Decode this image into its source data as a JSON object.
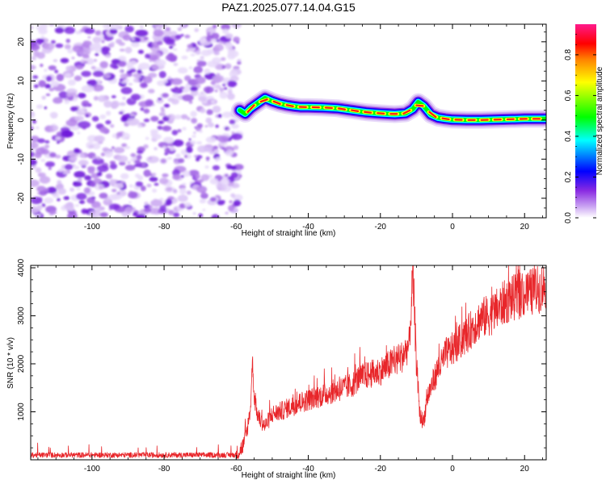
{
  "title": "PAZ1.2025.077.14.04.G15",
  "chart_data": [
    {
      "type": "heatmap",
      "xlabel": "Height of straight line (km)",
      "ylabel": "Frequency (Hz)",
      "xlim": [
        -117,
        26
      ],
      "ylim": [
        -25,
        24.5
      ],
      "xticks": [
        -100,
        -80,
        -60,
        -40,
        -20,
        0,
        20
      ],
      "yticks": [
        -20,
        -10,
        0,
        10,
        20
      ],
      "noise_region_x": [
        -117,
        -59
      ],
      "signal_trace": {
        "x": [
          -59,
          -57.5,
          -56,
          -54,
          -52,
          -50,
          -48,
          -46,
          -44,
          -42,
          -40,
          -36,
          -32,
          -28,
          -24,
          -20,
          -16,
          -13,
          -11,
          -9.5,
          -8,
          -6,
          -4,
          -2,
          0,
          4,
          8,
          12,
          16,
          20,
          24,
          26
        ],
        "y": [
          2.5,
          1.6,
          3.0,
          4.3,
          5.6,
          4.8,
          4.2,
          3.8,
          3.5,
          3.3,
          3.3,
          3.2,
          3.0,
          2.5,
          2.0,
          1.7,
          1.5,
          1.7,
          2.8,
          4.6,
          3.6,
          1.4,
          0.6,
          0.3,
          0.1,
          0.0,
          0.0,
          0.1,
          0.2,
          0.3,
          0.3,
          0.3
        ]
      },
      "colorbar": {
        "label": "Normalized spectral amplitude",
        "ticks": [
          "0.0",
          "0.2",
          "0.4",
          "0.6",
          "0.8"
        ],
        "tick_values": [
          0.0,
          0.2,
          0.4,
          0.6,
          0.8
        ],
        "range": [
          0,
          0.95
        ],
        "colormap": [
          "#ffffff",
          "#8a2be2",
          "#0000ff",
          "#00ffff",
          "#00ff00",
          "#ffff00",
          "#ff0000",
          "#ff1493"
        ]
      }
    },
    {
      "type": "line",
      "xlabel": "Height of straight line (km)",
      "ylabel": "SNR (10 * v/v)",
      "xlim": [
        -117,
        26
      ],
      "ylim": [
        0,
        4050
      ],
      "xticks": [
        -100,
        -80,
        -60,
        -40,
        -20,
        0,
        20
      ],
      "yticks": [
        1000,
        2000,
        3000,
        4000
      ],
      "color": "#e8262a",
      "series": [
        {
          "x": [
            -117,
            -60,
            -58,
            -57,
            -56,
            -55.5,
            -55,
            -54,
            -52,
            -50,
            -48,
            -45,
            -42,
            -40,
            -38,
            -36,
            -34,
            -30,
            -28,
            -26,
            -24,
            -22,
            -20,
            -18,
            -16,
            -14,
            -12,
            -11,
            -10.5,
            -10,
            -9,
            -8,
            -7,
            -6,
            -5,
            -4,
            -3,
            -2,
            0,
            2,
            4,
            6,
            8,
            10,
            12,
            14,
            16,
            18,
            20,
            22,
            24,
            26
          ],
          "y": [
            100,
            100,
            300,
            600,
            1100,
            2100,
            1300,
            900,
            700,
            950,
            1000,
            1100,
            1200,
            1250,
            1300,
            1350,
            1400,
            1500,
            1550,
            1700,
            1750,
            1800,
            1850,
            1950,
            2050,
            2150,
            2400,
            3850,
            3000,
            2000,
            900,
            800,
            1300,
            1500,
            1700,
            1900,
            2000,
            2200,
            2300,
            2450,
            2600,
            2800,
            2950,
            3000,
            3100,
            3250,
            3350,
            3400,
            3450,
            3500,
            3550,
            3650
          ]
        }
      ]
    }
  ]
}
